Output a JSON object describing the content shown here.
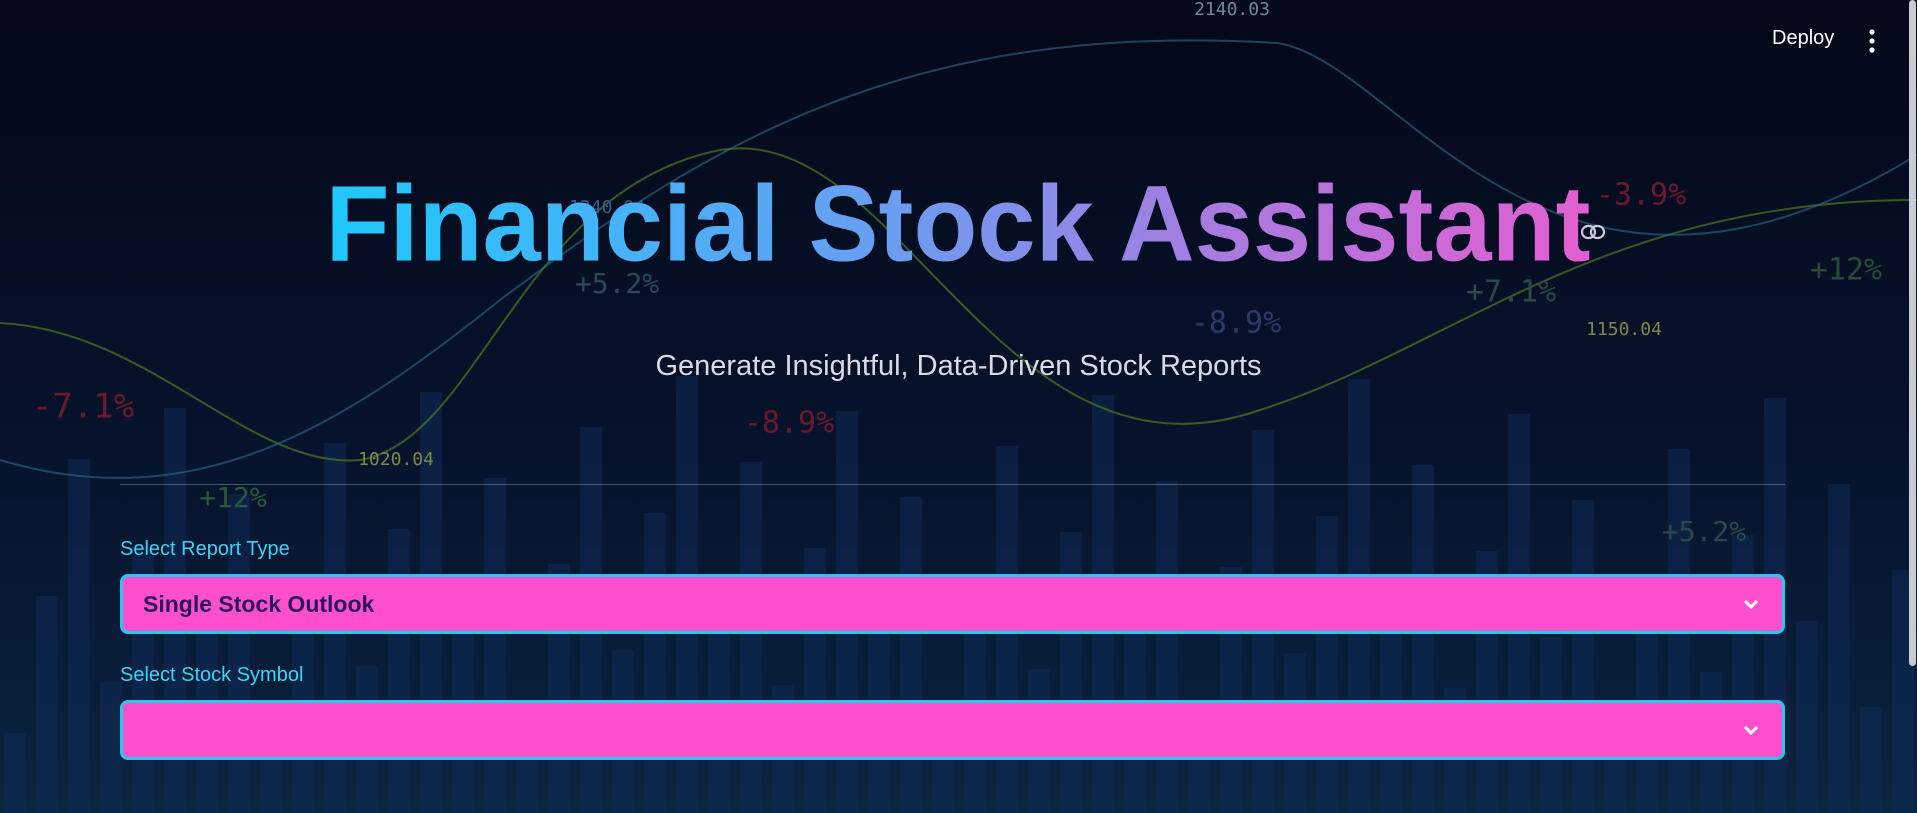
{
  "header": {
    "deploy": "Deploy"
  },
  "title": "Financial Stock Assistant",
  "subtitle": "Generate Insightful, Data-Driven Stock Reports",
  "form": {
    "fields": [
      {
        "label": "Select Report Type",
        "value": "Single Stock Outlook"
      },
      {
        "label": "Select Stock Symbol"
      }
    ]
  },
  "background": {
    "labels": [
      "2140.03",
      "1340.04",
      "1020.04",
      "1150.04",
      "-7.1%",
      "+12%",
      "+5.2%",
      "-8.9%",
      "-8.9%",
      "+7.1%",
      "-3.9%",
      "+12%",
      "+5.2%"
    ]
  }
}
